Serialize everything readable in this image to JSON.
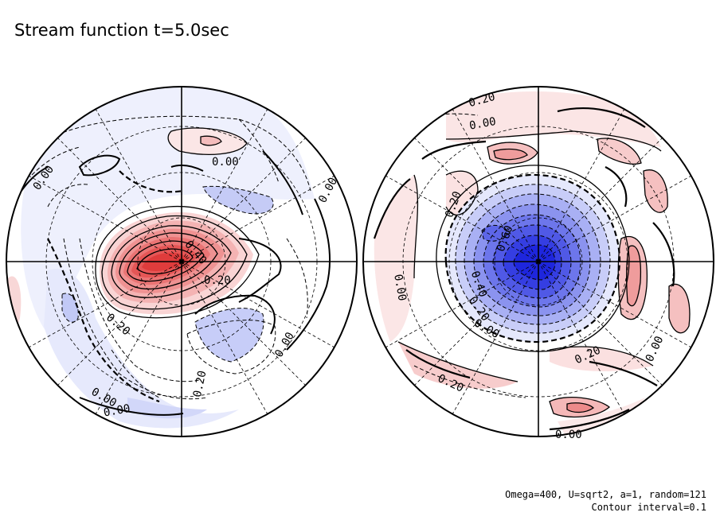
{
  "title": "Stream function t=5.0sec",
  "parameters": {
    "line1": "Omega=400, U=sqrt2, a=1, random=121",
    "line2": "Contour interval=0.1"
  },
  "colors": {
    "positive": "#e03030",
    "negative": "#2020e0",
    "background": "#ffffff",
    "line": "#000000"
  },
  "chart_data": {
    "type": "heatmap",
    "title": "Stream function t=5.0sec",
    "contour_interval": 0.1,
    "projection": "polar stereographic, two hemispheres",
    "panels": [
      {
        "name": "left",
        "extremum": {
          "sign": "positive",
          "approx": 0.8
        },
        "contour_labels": [
          "0.00",
          "0.00",
          "0.00",
          "0.40",
          "0.20",
          "0.20",
          "0.20",
          "0.00",
          "0.00",
          "0.00"
        ]
      },
      {
        "name": "right",
        "extremum": {
          "sign": "negative",
          "approx": -1.0
        },
        "contour_labels": [
          "0.20",
          "0.00",
          "0.20",
          "0.60",
          "0.40",
          "0.20",
          "0.00",
          "0.00",
          "0.00",
          "0.20",
          "0.20",
          "0.00"
        ]
      }
    ]
  }
}
